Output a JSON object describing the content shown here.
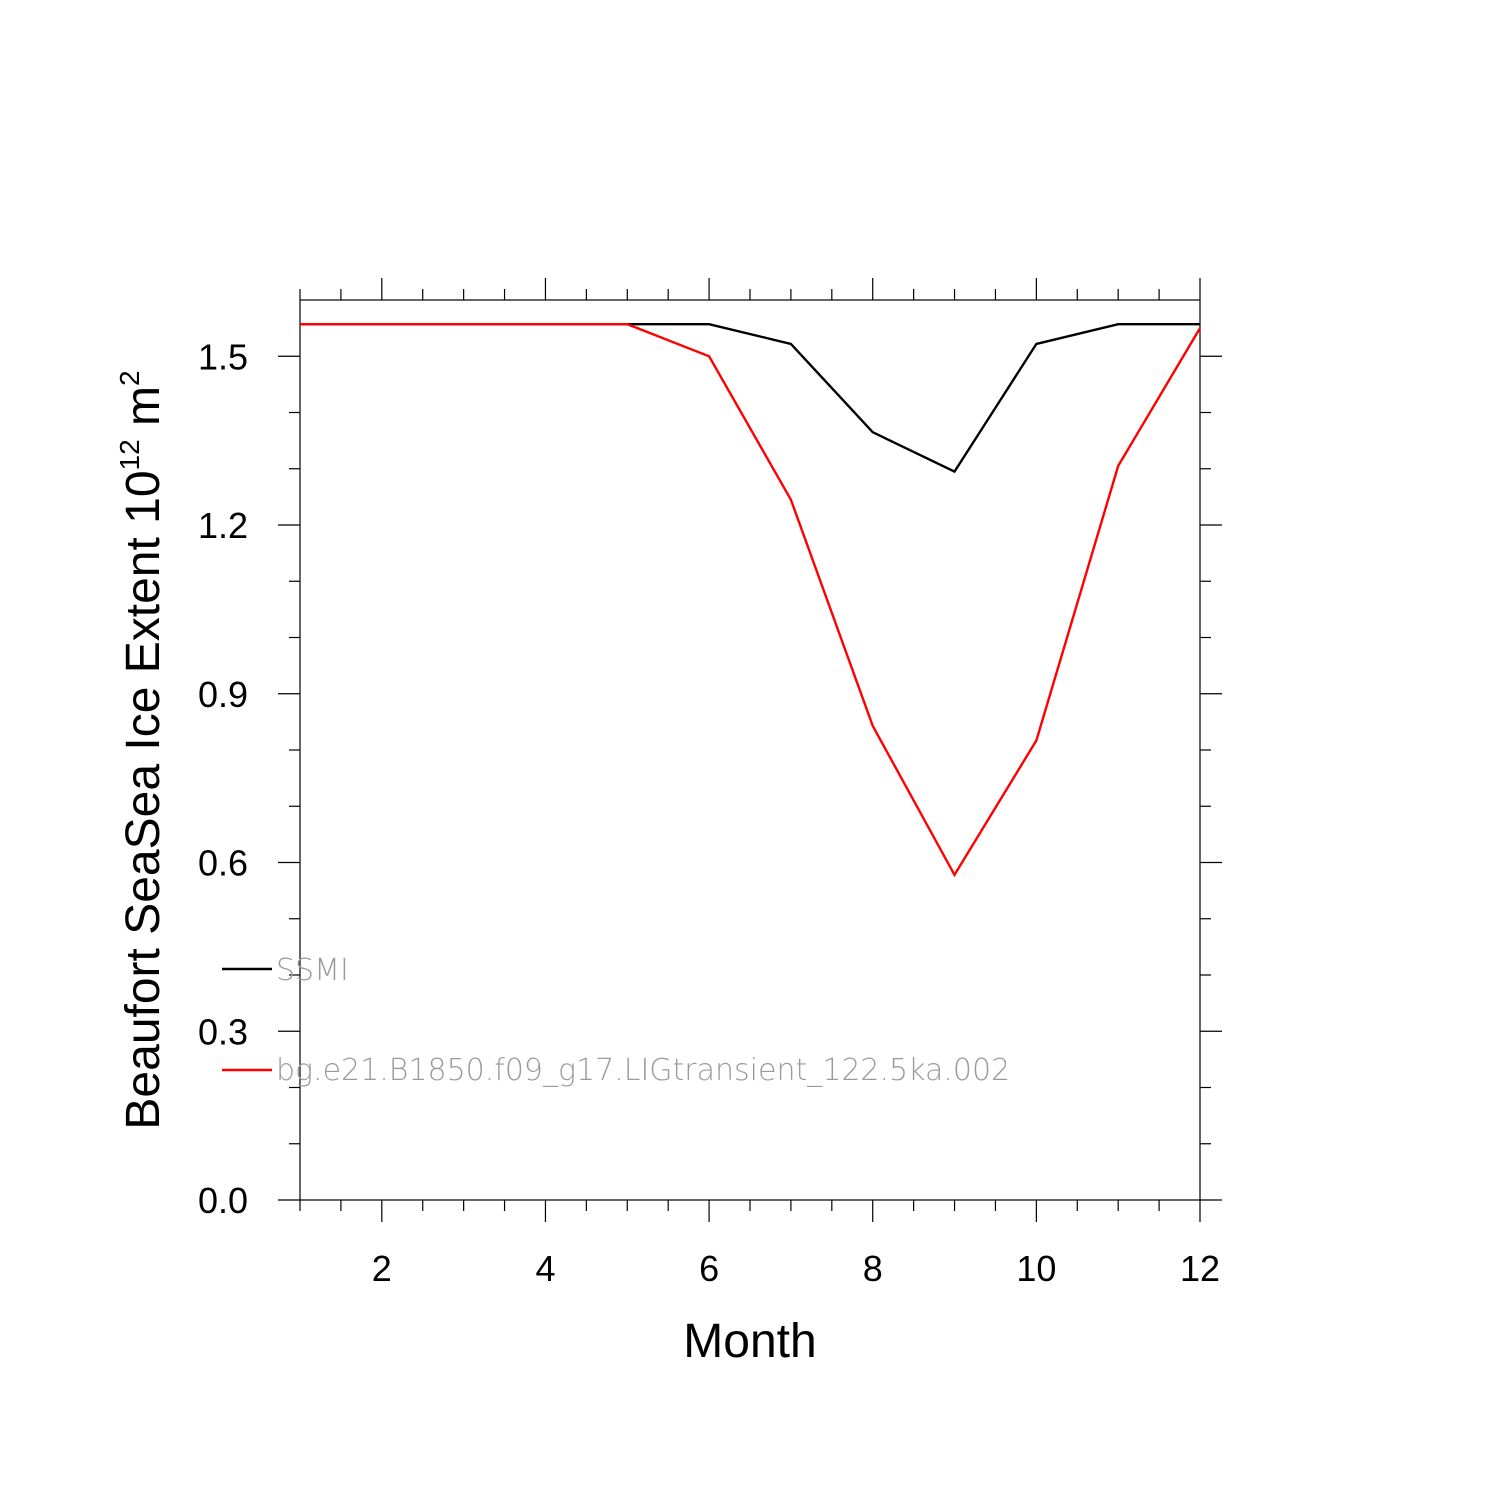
{
  "chart_data": {
    "type": "line",
    "xlabel": "Month",
    "ylabel": {
      "text": "Beaufort SeaSea Ice Extent 10",
      "sup1": "12",
      "unit": " m",
      "sup2": "2"
    },
    "xlim": [
      1,
      12
    ],
    "ylim": [
      0,
      1.6
    ],
    "x_major_ticks": [
      2,
      4,
      6,
      8,
      10,
      12
    ],
    "x_tick_labels": [
      "2",
      "4",
      "6",
      "8",
      "10",
      "12"
    ],
    "y_major_ticks": [
      0.0,
      0.3,
      0.6,
      0.9,
      1.2,
      1.5
    ],
    "y_tick_labels": [
      "0.0",
      "0.3",
      "0.6",
      "0.9",
      "1.2",
      "1.5"
    ],
    "grid": false,
    "legend_position": "bottom-left",
    "x": [
      1,
      2,
      3,
      4,
      5,
      6,
      7,
      8,
      9,
      10,
      11,
      12
    ],
    "series": [
      {
        "name": "SSMI",
        "color": "#000000",
        "values": [
          1.557,
          1.557,
          1.557,
          1.557,
          1.557,
          1.557,
          1.522,
          1.365,
          1.295,
          1.522,
          1.557,
          1.557
        ]
      },
      {
        "name": "bg.e21.B1850.f09_g17.LIGtransient_122.5ka.002",
        "color": "#ff0000",
        "values": [
          1.557,
          1.557,
          1.557,
          1.557,
          1.557,
          1.5,
          1.245,
          0.843,
          0.578,
          0.817,
          1.305,
          1.55
        ]
      }
    ]
  }
}
